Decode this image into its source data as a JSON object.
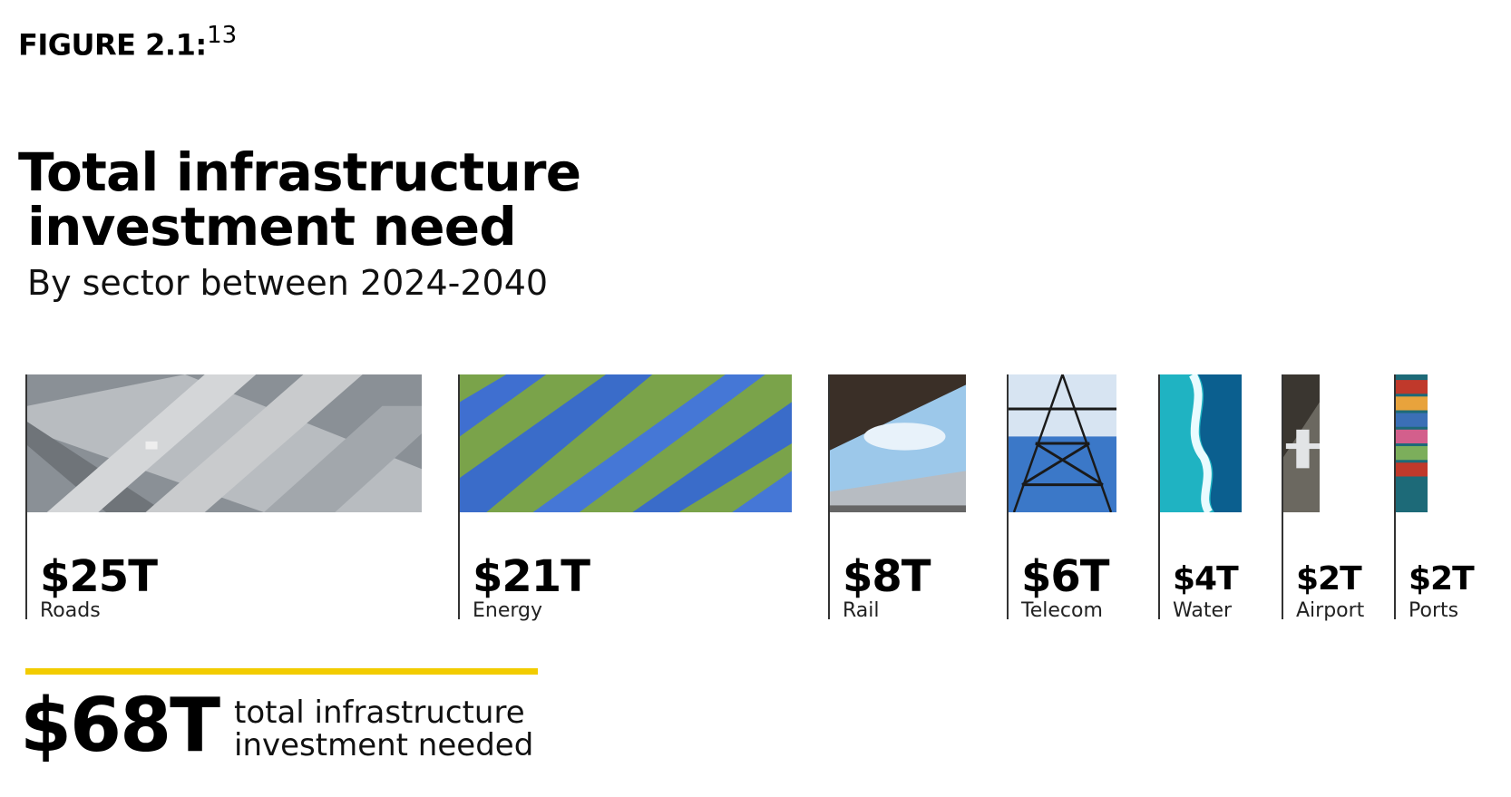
{
  "figure": {
    "label": "FIGURE 2.1",
    "punct": ":",
    "footnote": "13"
  },
  "chart_data": {
    "type": "bar",
    "title_line1": "Total infrastructure",
    "title_line2": "investment need",
    "subtitle": "By sector between 2024-2040",
    "unit": "trillion USD",
    "categories": [
      "Roads",
      "Energy",
      "Rail",
      "Telecom",
      "Water",
      "Airport",
      "Ports"
    ],
    "values": [
      25,
      21,
      8,
      6,
      4,
      2,
      2
    ],
    "value_labels": [
      "$25T",
      "$21T",
      "$8T",
      "$6T",
      "$4T",
      "$2T",
      "$2T"
    ],
    "images": [
      "highway-overpass-photo",
      "solar-panels-photo",
      "rail-train-photo",
      "transmission-tower-photo",
      "ocean-water-photo",
      "airplane-runway-photo",
      "container-ship-photo"
    ],
    "total": {
      "value": 68,
      "label": "$68T",
      "caption_line1": "total infrastructure",
      "caption_line2": "investment needed"
    },
    "colors": {
      "accent": "#f2cc00",
      "text": "#000000",
      "rule": "#333333"
    }
  }
}
